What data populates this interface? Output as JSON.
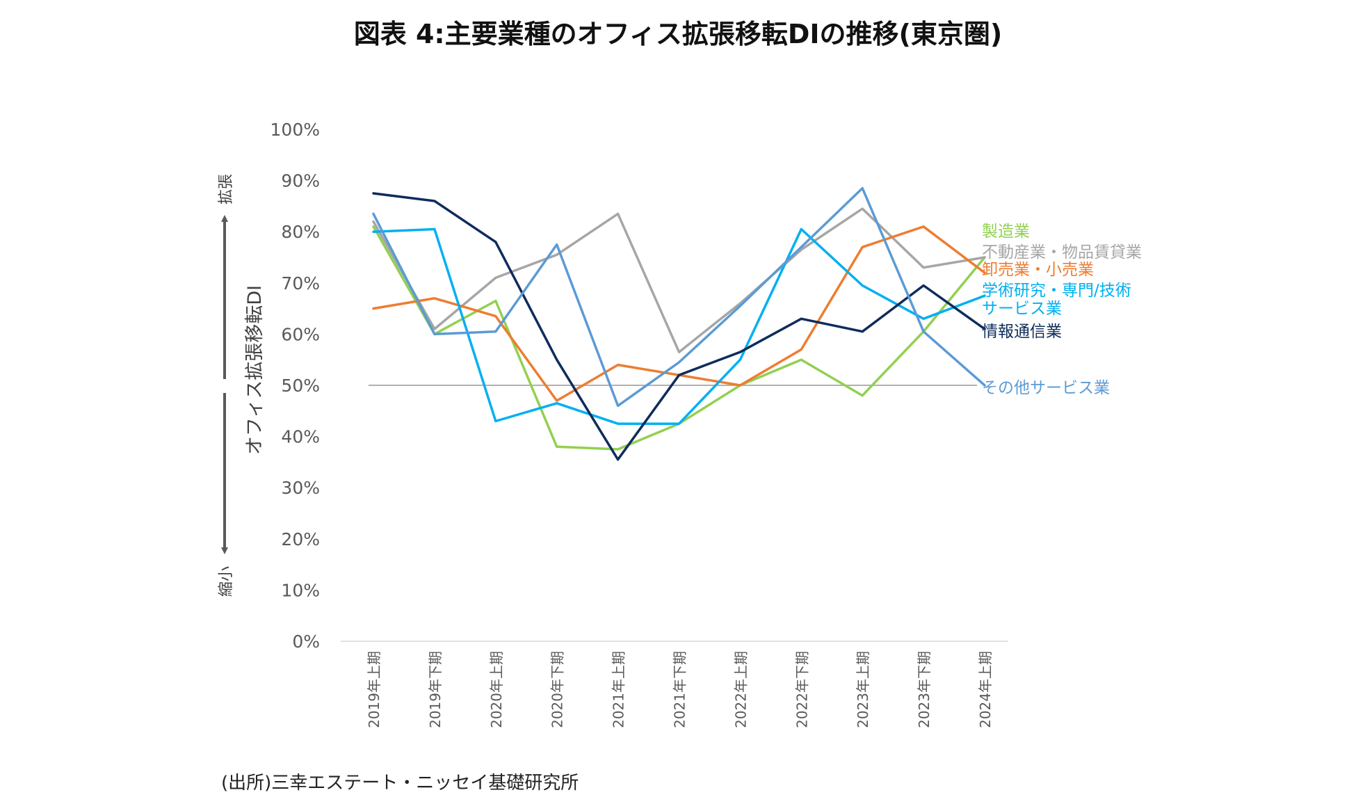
{
  "chart_data": {
    "type": "line",
    "title": "図表 4:主要業種のオフィス拡張移転DIの推移(東京圏)",
    "ylabel": "オフィス拡張移転DI",
    "y_top_label": "拡張",
    "y_bottom_label": "縮小",
    "ylim": [
      0,
      100
    ],
    "yticks": [
      "0%",
      "10%",
      "20%",
      "30%",
      "40%",
      "50%",
      "60%",
      "70%",
      "80%",
      "90%",
      "100%"
    ],
    "categories": [
      "2019年上期",
      "2019年下期",
      "2020年上期",
      "2020年下期",
      "2021年上期",
      "2021年下期",
      "2022年上期",
      "2022年下期",
      "2023年上期",
      "2023年下期",
      "2024年上期"
    ],
    "reference_line": 50,
    "series": [
      {
        "name": "製造業",
        "color": "#92d050",
        "values": [
          81,
          60,
          66.5,
          38,
          37.5,
          42.5,
          50,
          55,
          48,
          60.5,
          75
        ]
      },
      {
        "name": "不動産業・物品賃貸業",
        "color": "#a6a6a6",
        "values": [
          82,
          61,
          71,
          75.5,
          83.5,
          56.5,
          66,
          76.5,
          84.5,
          73,
          75
        ]
      },
      {
        "name": "卸売業・小売業",
        "color": "#ed7d31",
        "values": [
          65,
          67,
          63.5,
          47,
          54,
          52,
          50,
          57,
          77,
          81,
          72
        ]
      },
      {
        "name": "学術研究・専門/技術サービス業",
        "color": "#00b0f0",
        "values": [
          80,
          80.5,
          43,
          46.5,
          42.5,
          42.5,
          55,
          80.5,
          69.5,
          63,
          67.5
        ]
      },
      {
        "name": "情報通信業",
        "color": "#0f2c5c",
        "values": [
          87.5,
          86,
          78,
          55,
          35.5,
          52,
          56.5,
          63,
          60.5,
          69.5,
          61
        ]
      },
      {
        "name": "その他サービス業",
        "color": "#5b9bd5",
        "values": [
          83.5,
          60,
          60.5,
          77.5,
          46,
          54.5,
          65.5,
          77,
          88.5,
          60.5,
          50
        ]
      }
    ]
  },
  "source": "(出所)三幸エステート・ニッセイ基礎研究所"
}
